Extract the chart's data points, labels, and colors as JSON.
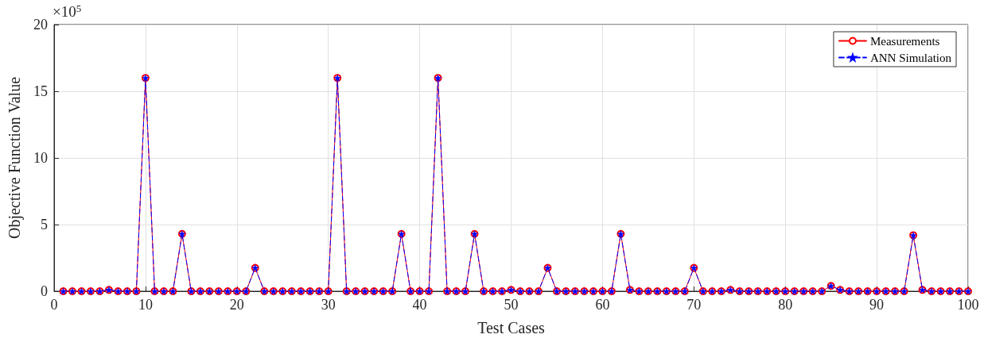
{
  "chart_data": {
    "type": "line",
    "xlabel": "Test Cases",
    "ylabel": "Objective Function Value",
    "annotations": [
      "×10$^{5}$"
    ],
    "x": [
      1,
      2,
      3,
      4,
      5,
      6,
      7,
      8,
      9,
      10,
      11,
      12,
      13,
      14,
      15,
      16,
      17,
      18,
      19,
      20,
      21,
      22,
      23,
      24,
      25,
      26,
      27,
      28,
      29,
      30,
      31,
      32,
      33,
      34,
      35,
      36,
      37,
      38,
      39,
      40,
      41,
      42,
      43,
      44,
      45,
      46,
      47,
      48,
      49,
      50,
      51,
      52,
      53,
      54,
      55,
      56,
      57,
      58,
      59,
      60,
      61,
      62,
      63,
      64,
      65,
      66,
      67,
      68,
      69,
      70,
      71,
      72,
      73,
      74,
      75,
      76,
      77,
      78,
      79,
      80,
      81,
      82,
      83,
      84,
      85,
      86,
      87,
      88,
      89,
      90,
      91,
      92,
      93,
      94,
      95,
      96,
      97,
      98,
      99,
      100
    ],
    "series": [
      {
        "name": "Measurements",
        "color": "#ff0000",
        "marker": "circle",
        "line_style": "solid",
        "values": [
          0,
          0,
          0,
          0,
          0,
          0.1,
          0,
          0,
          0,
          16,
          0,
          0,
          0,
          4.3,
          0,
          0,
          0,
          0,
          0,
          0,
          0,
          1.75,
          0,
          0,
          0,
          0,
          0,
          0,
          0,
          0,
          16,
          0,
          0,
          0,
          0,
          0,
          0,
          4.3,
          0,
          0,
          0,
          16,
          0,
          0,
          0,
          4.3,
          0,
          0,
          0,
          0.1,
          0,
          0,
          0,
          1.75,
          0,
          0,
          0,
          0,
          0,
          0,
          0,
          4.3,
          0.1,
          0,
          0,
          0,
          0,
          0,
          0,
          1.75,
          0,
          0,
          0,
          0.1,
          0,
          0,
          0,
          0,
          0,
          0,
          0,
          0,
          0,
          0,
          0.4,
          0.1,
          0,
          0,
          0,
          0,
          0,
          0,
          0,
          4.2,
          0.1,
          0,
          0,
          0,
          0,
          0
        ]
      },
      {
        "name": "ANN Simulation",
        "color": "#0000ff",
        "marker": "star",
        "line_style": "dashed",
        "values": [
          0,
          0,
          0,
          0,
          0,
          0.1,
          0,
          0,
          0,
          16,
          0,
          0,
          0,
          4.3,
          0,
          0,
          0,
          0,
          0,
          0,
          0,
          1.75,
          0,
          0,
          0,
          0,
          0,
          0,
          0,
          0,
          16,
          0,
          0,
          0,
          0,
          0,
          0,
          4.3,
          0,
          0,
          0,
          16,
          0,
          0,
          0,
          4.3,
          0,
          0,
          0,
          0.1,
          0,
          0,
          0,
          1.75,
          0,
          0,
          0,
          0,
          0,
          0,
          0,
          4.3,
          0.1,
          0,
          0,
          0,
          0,
          0,
          0,
          1.75,
          0,
          0,
          0,
          0.1,
          0,
          0,
          0,
          0,
          0,
          0,
          0,
          0,
          0,
          0,
          0.4,
          0.1,
          0,
          0,
          0,
          0,
          0,
          0,
          0,
          4.2,
          0.1,
          0,
          0,
          0,
          0,
          0
        ]
      }
    ],
    "xlim": [
      0,
      100
    ],
    "xticks": [
      0,
      10,
      20,
      30,
      40,
      50,
      60,
      70,
      80,
      90,
      100
    ],
    "ylim": [
      0,
      20
    ],
    "yticks": [
      0,
      5,
      10,
      15,
      20
    ],
    "grid": true,
    "legend": "top right"
  }
}
